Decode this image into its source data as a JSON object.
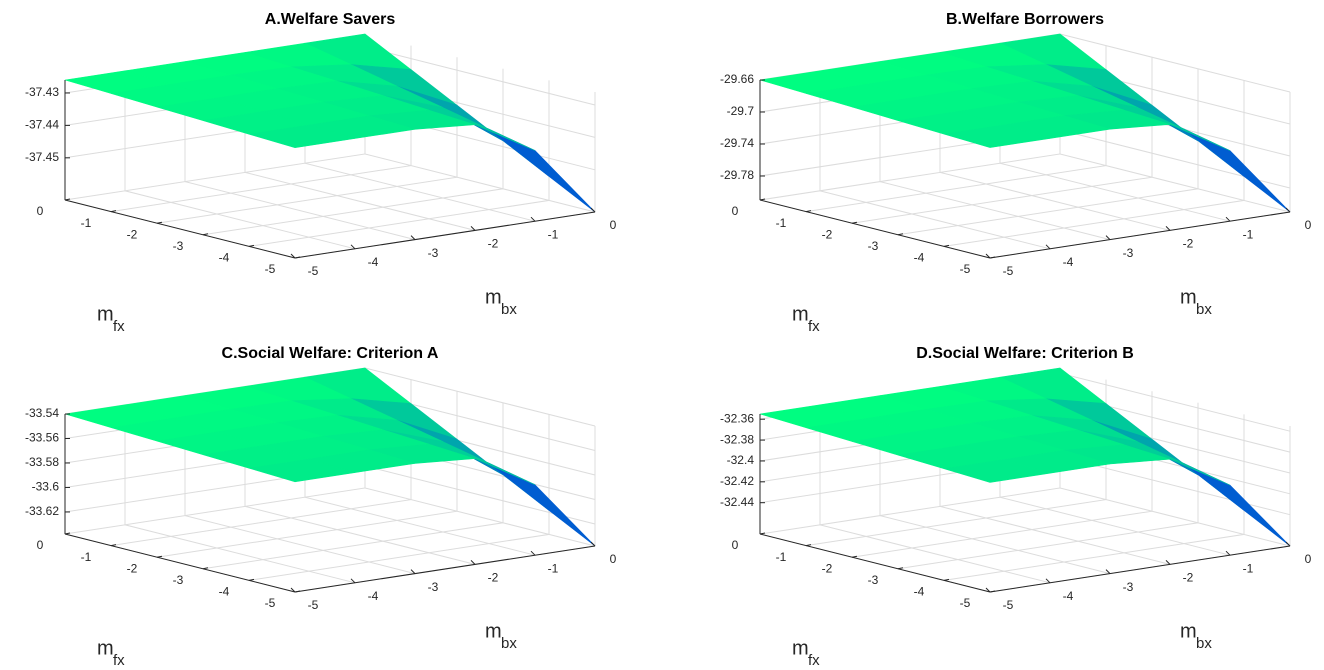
{
  "chart_data": [
    {
      "type": "surface",
      "title": "A.Welfare Savers",
      "xlabel": "m",
      "xlabel_sub": "bx",
      "ylabel": "m",
      "ylabel_sub": "fx",
      "x": [
        -5,
        -4,
        -3,
        -2,
        -1,
        0
      ],
      "y": [
        0,
        -1,
        -2,
        -3,
        -4,
        -5
      ],
      "z": [
        [
          -37.426,
          -37.426,
          -37.426,
          -37.426,
          -37.426,
          -37.426
        ],
        [
          -37.4266,
          -37.4266,
          -37.4266,
          -37.4269,
          -37.429,
          -37.4334
        ],
        [
          -37.4272,
          -37.4272,
          -37.4272,
          -37.4277,
          -37.4321,
          -37.4408
        ],
        [
          -37.4278,
          -37.4278,
          -37.4278,
          -37.4286,
          -37.4351,
          -37.4482
        ],
        [
          -37.4284,
          -37.4284,
          -37.4284,
          -37.4295,
          -37.4382,
          -37.4556
        ],
        [
          -37.429,
          -37.429,
          -37.429,
          -37.4304,
          -37.4412,
          -37.463
        ]
      ],
      "xlim": [
        -5,
        0
      ],
      "ylim": [
        -5,
        0
      ],
      "zlim": [
        -37.463,
        -37.426
      ],
      "xticks": [
        -5,
        -4,
        -3,
        -2,
        -1,
        0
      ],
      "yticks": [
        0,
        -1,
        -2,
        -3,
        -4,
        -5
      ],
      "zticks": [
        -37.45,
        -37.44,
        -37.43
      ],
      "grid": true,
      "colormap": [
        "#0000ff",
        "#00ff80"
      ]
    },
    {
      "type": "surface",
      "title": "B.Welfare Borrowers",
      "xlabel": "m",
      "xlabel_sub": "bx",
      "ylabel": "m",
      "ylabel_sub": "fx",
      "x": [
        -5,
        -4,
        -3,
        -2,
        -1,
        0
      ],
      "y": [
        0,
        -1,
        -2,
        -3,
        -4,
        -5
      ],
      "z": [
        [
          -29.66,
          -29.66,
          -29.66,
          -29.66,
          -29.66,
          -29.66
        ],
        [
          -29.6624,
          -29.6624,
          -29.6624,
          -29.6635,
          -29.6723,
          -29.69
        ],
        [
          -29.6648,
          -29.6648,
          -29.6648,
          -29.667,
          -29.6847,
          -29.72
        ],
        [
          -29.6672,
          -29.6672,
          -29.6672,
          -29.6705,
          -29.697,
          -29.75
        ],
        [
          -29.6696,
          -29.6696,
          -29.6696,
          -29.674,
          -29.7093,
          -29.78
        ],
        [
          -29.672,
          -29.672,
          -29.672,
          -29.6775,
          -29.7217,
          -29.81
        ]
      ],
      "xlim": [
        -5,
        0
      ],
      "ylim": [
        -5,
        0
      ],
      "zlim": [
        -29.81,
        -29.66
      ],
      "xticks": [
        -5,
        -4,
        -3,
        -2,
        -1,
        0
      ],
      "yticks": [
        0,
        -1,
        -2,
        -3,
        -4,
        -5
      ],
      "zticks": [
        -29.78,
        -29.74,
        -29.7,
        -29.66
      ],
      "grid": true,
      "colormap": [
        "#0000ff",
        "#00ff80"
      ]
    },
    {
      "type": "surface",
      "title": "C.Social Welfare: Criterion A",
      "xlabel": "m",
      "xlabel_sub": "bx",
      "ylabel": "m",
      "ylabel_sub": "fx",
      "x": [
        -5,
        -4,
        -3,
        -2,
        -1,
        0
      ],
      "y": [
        0,
        -1,
        -2,
        -3,
        -4,
        -5
      ],
      "z": [
        [
          -33.54,
          -33.54,
          -33.54,
          -33.54,
          -33.54,
          -33.54
        ],
        [
          -33.5416,
          -33.5416,
          -33.5416,
          -33.5423,
          -33.5481,
          -33.5596
        ],
        [
          -33.5432,
          -33.5432,
          -33.5432,
          -33.5446,
          -33.5562,
          -33.5792
        ],
        [
          -33.5448,
          -33.5448,
          -33.5448,
          -33.547,
          -33.5642,
          -33.5988
        ],
        [
          -33.5464,
          -33.5464,
          -33.5464,
          -33.5493,
          -33.5723,
          -33.6184
        ],
        [
          -33.548,
          -33.548,
          -33.548,
          -33.5516,
          -33.5804,
          -33.638
        ]
      ],
      "xlim": [
        -5,
        0
      ],
      "ylim": [
        -5,
        0
      ],
      "zlim": [
        -33.638,
        -33.54
      ],
      "xticks": [
        -5,
        -4,
        -3,
        -2,
        -1,
        0
      ],
      "yticks": [
        0,
        -1,
        -2,
        -3,
        -4,
        -5
      ],
      "zticks": [
        -33.62,
        -33.6,
        -33.58,
        -33.56,
        -33.54
      ],
      "grid": true,
      "colormap": [
        "#0000ff",
        "#00ff80"
      ]
    },
    {
      "type": "surface",
      "title": "D.Social Welfare: Criterion B",
      "xlabel": "m",
      "xlabel_sub": "bx",
      "ylabel": "m",
      "ylabel_sub": "fx",
      "x": [
        -5,
        -4,
        -3,
        -2,
        -1,
        0
      ],
      "y": [
        0,
        -1,
        -2,
        -3,
        -4,
        -5
      ],
      "z": [
        [
          -32.355,
          -32.355,
          -32.355,
          -32.355,
          -32.355,
          -32.355
        ],
        [
          -32.357,
          -32.357,
          -32.357,
          -32.3578,
          -32.3646,
          -32.378
        ],
        [
          -32.359,
          -32.359,
          -32.359,
          -32.3607,
          -32.3741,
          -32.401
        ],
        [
          -32.361,
          -32.361,
          -32.361,
          -32.3635,
          -32.3837,
          -32.424
        ],
        [
          -32.363,
          -32.363,
          -32.363,
          -32.3664,
          -32.3932,
          -32.447
        ],
        [
          -32.365,
          -32.365,
          -32.365,
          -32.3692,
          -32.4028,
          -32.47
        ]
      ],
      "xlim": [
        -5,
        0
      ],
      "ylim": [
        -5,
        0
      ],
      "zlim": [
        -32.47,
        -32.355
      ],
      "xticks": [
        -5,
        -4,
        -3,
        -2,
        -1,
        0
      ],
      "yticks": [
        0,
        -1,
        -2,
        -3,
        -4,
        -5
      ],
      "zticks": [
        -32.44,
        -32.42,
        -32.4,
        -32.38,
        -32.36
      ],
      "grid": true,
      "colormap": [
        "#0000ff",
        "#00ff80"
      ]
    }
  ]
}
